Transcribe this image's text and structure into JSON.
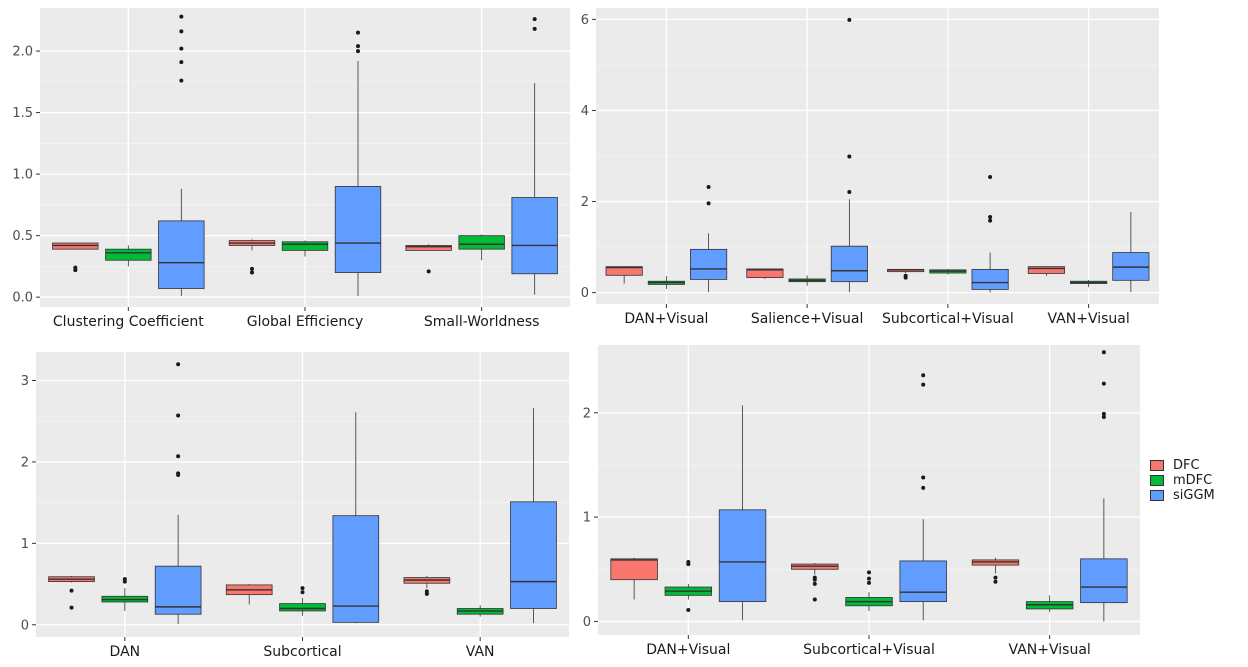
{
  "chart_data": [
    {
      "type": "box",
      "categories": [
        "Clustering Coefficient",
        "Global Efficiency",
        "Small-Worldness"
      ],
      "ylim": [
        -0.08,
        2.35
      ],
      "yticks": [
        0.0,
        0.5,
        1.0,
        1.5,
        2.0
      ],
      "ytick_labels": [
        "0.0",
        "0.5",
        "1.0",
        "1.5",
        "2.0"
      ],
      "series": [
        {
          "name": "DFC",
          "boxes": [
            {
              "lo": 0.39,
              "q1": 0.39,
              "med": 0.42,
              "q3": 0.44,
              "hi": 0.44,
              "out": [
                0.22,
                0.24
              ]
            },
            {
              "lo": 0.38,
              "q1": 0.42,
              "med": 0.44,
              "q3": 0.46,
              "hi": 0.47,
              "out": [
                0.2,
                0.23
              ]
            },
            {
              "lo": 0.38,
              "q1": 0.38,
              "med": 0.41,
              "q3": 0.42,
              "hi": 0.43,
              "out": [
                0.21
              ]
            }
          ]
        },
        {
          "name": "mDFC",
          "boxes": [
            {
              "lo": 0.25,
              "q1": 0.3,
              "med": 0.36,
              "q3": 0.39,
              "hi": 0.42,
              "out": []
            },
            {
              "lo": 0.33,
              "q1": 0.38,
              "med": 0.43,
              "q3": 0.45,
              "hi": 0.46,
              "out": []
            },
            {
              "lo": 0.3,
              "q1": 0.39,
              "med": 0.43,
              "q3": 0.5,
              "hi": 0.51,
              "out": []
            }
          ]
        },
        {
          "name": "siGGM",
          "boxes": [
            {
              "lo": 0.01,
              "q1": 0.07,
              "med": 0.28,
              "q3": 0.62,
              "hi": 0.88,
              "out": [
                1.76,
                1.91,
                2.02,
                2.16,
                2.28
              ]
            },
            {
              "lo": 0.01,
              "q1": 0.2,
              "med": 0.44,
              "q3": 0.9,
              "hi": 1.92,
              "out": [
                2.0,
                2.04,
                2.15
              ]
            },
            {
              "lo": 0.02,
              "q1": 0.19,
              "med": 0.42,
              "q3": 0.81,
              "hi": 1.74,
              "out": [
                2.18,
                2.26
              ]
            }
          ]
        }
      ]
    },
    {
      "type": "box",
      "categories": [
        "DAN+Visual",
        "Salience+Visual",
        "Subcortical+Visual",
        "VAN+Visual"
      ],
      "ylim": [
        -0.25,
        6.25
      ],
      "yticks": [
        0,
        2,
        4,
        6
      ],
      "ytick_labels": [
        "0",
        "2",
        "4",
        "6"
      ],
      "series": [
        {
          "name": "DFC",
          "boxes": [
            {
              "lo": 0.2,
              "q1": 0.38,
              "med": 0.55,
              "q3": 0.57,
              "hi": 0.58,
              "out": []
            },
            {
              "lo": 0.3,
              "q1": 0.33,
              "med": 0.5,
              "q3": 0.52,
              "hi": 0.53,
              "out": []
            },
            {
              "lo": 0.43,
              "q1": 0.46,
              "med": 0.5,
              "q3": 0.51,
              "hi": 0.52,
              "out": [
                0.33,
                0.37
              ]
            },
            {
              "lo": 0.37,
              "q1": 0.42,
              "med": 0.53,
              "q3": 0.57,
              "hi": 0.58,
              "out": []
            }
          ]
        },
        {
          "name": "mDFC",
          "boxes": [
            {
              "lo": 0.08,
              "q1": 0.18,
              "med": 0.22,
              "q3": 0.25,
              "hi": 0.36,
              "out": []
            },
            {
              "lo": 0.15,
              "q1": 0.24,
              "med": 0.27,
              "q3": 0.3,
              "hi": 0.38,
              "out": []
            },
            {
              "lo": 0.4,
              "q1": 0.43,
              "med": 0.47,
              "q3": 0.5,
              "hi": 0.52,
              "out": []
            },
            {
              "lo": 0.12,
              "q1": 0.2,
              "med": 0.22,
              "q3": 0.25,
              "hi": 0.28,
              "out": []
            }
          ]
        },
        {
          "name": "siGGM",
          "boxes": [
            {
              "lo": 0.01,
              "q1": 0.29,
              "med": 0.52,
              "q3": 0.95,
              "hi": 1.3,
              "out": [
                1.96,
                2.32
              ]
            },
            {
              "lo": 0.01,
              "q1": 0.24,
              "med": 0.48,
              "q3": 1.02,
              "hi": 2.05,
              "out": [
                2.21,
                2.99,
                5.99
              ]
            },
            {
              "lo": 0.0,
              "q1": 0.07,
              "med": 0.22,
              "q3": 0.51,
              "hi": 0.88,
              "out": [
                1.58,
                1.66,
                2.54
              ]
            },
            {
              "lo": 0.01,
              "q1": 0.27,
              "med": 0.56,
              "q3": 0.88,
              "hi": 1.77,
              "out": []
            }
          ]
        }
      ]
    },
    {
      "type": "box",
      "categories": [
        "DAN",
        "Subcortical",
        "VAN"
      ],
      "ylim": [
        -0.15,
        3.35
      ],
      "yticks": [
        0,
        1,
        2,
        3
      ],
      "ytick_labels": [
        "0",
        "1",
        "2",
        "3"
      ],
      "series": [
        {
          "name": "DFC",
          "boxes": [
            {
              "lo": 0.52,
              "q1": 0.53,
              "med": 0.56,
              "q3": 0.59,
              "hi": 0.6,
              "out": [
                0.21,
                0.42
              ]
            },
            {
              "lo": 0.25,
              "q1": 0.37,
              "med": 0.43,
              "q3": 0.49,
              "hi": 0.5,
              "out": []
            },
            {
              "lo": 0.45,
              "q1": 0.51,
              "med": 0.55,
              "q3": 0.58,
              "hi": 0.6,
              "out": [
                0.38,
                0.41
              ]
            }
          ]
        },
        {
          "name": "mDFC",
          "boxes": [
            {
              "lo": 0.17,
              "q1": 0.28,
              "med": 0.31,
              "q3": 0.35,
              "hi": 0.45,
              "out": [
                0.53,
                0.56
              ]
            },
            {
              "lo": 0.11,
              "q1": 0.17,
              "med": 0.2,
              "q3": 0.26,
              "hi": 0.33,
              "out": [
                0.4,
                0.45
              ]
            },
            {
              "lo": 0.1,
              "q1": 0.13,
              "med": 0.17,
              "q3": 0.2,
              "hi": 0.24,
              "out": []
            }
          ]
        },
        {
          "name": "siGGM",
          "boxes": [
            {
              "lo": 0.01,
              "q1": 0.13,
              "med": 0.22,
              "q3": 0.72,
              "hi": 1.35,
              "out": [
                1.84,
                1.86,
                2.07,
                2.57,
                3.2
              ]
            },
            {
              "lo": 0.02,
              "q1": 0.03,
              "med": 0.23,
              "q3": 1.34,
              "hi": 2.61,
              "out": []
            },
            {
              "lo": 0.02,
              "q1": 0.2,
              "med": 0.53,
              "q3": 1.51,
              "hi": 2.66,
              "out": []
            }
          ]
        }
      ]
    },
    {
      "type": "box",
      "categories": [
        "DAN+Visual",
        "Subcortical+Visual",
        "VAN+Visual"
      ],
      "ylim": [
        -0.13,
        2.65
      ],
      "yticks": [
        0,
        1,
        2
      ],
      "ytick_labels": [
        "0",
        "1",
        "2"
      ],
      "series": [
        {
          "name": "DFC",
          "boxes": [
            {
              "lo": 0.21,
              "q1": 0.4,
              "med": 0.59,
              "q3": 0.6,
              "hi": 0.61,
              "out": []
            },
            {
              "lo": 0.45,
              "q1": 0.5,
              "med": 0.53,
              "q3": 0.55,
              "hi": 0.56,
              "out": [
                0.21,
                0.36,
                0.4,
                0.42
              ]
            },
            {
              "lo": 0.46,
              "q1": 0.54,
              "med": 0.57,
              "q3": 0.59,
              "hi": 0.61,
              "out": [
                0.38,
                0.42
              ]
            }
          ]
        },
        {
          "name": "mDFC",
          "boxes": [
            {
              "lo": 0.21,
              "q1": 0.25,
              "med": 0.29,
              "q3": 0.33,
              "hi": 0.36,
              "out": [
                0.11,
                0.55,
                0.57
              ]
            },
            {
              "lo": 0.1,
              "q1": 0.15,
              "med": 0.19,
              "q3": 0.23,
              "hi": 0.28,
              "out": [
                0.37,
                0.41,
                0.47
              ]
            },
            {
              "lo": 0.09,
              "q1": 0.12,
              "med": 0.16,
              "q3": 0.19,
              "hi": 0.25,
              "out": []
            }
          ]
        },
        {
          "name": "siGGM",
          "boxes": [
            {
              "lo": 0.01,
              "q1": 0.19,
              "med": 0.57,
              "q3": 1.07,
              "hi": 2.07,
              "out": []
            },
            {
              "lo": 0.01,
              "q1": 0.19,
              "med": 0.28,
              "q3": 0.58,
              "hi": 0.98,
              "out": [
                1.28,
                1.38,
                2.27,
                2.36
              ]
            },
            {
              "lo": 0.0,
              "q1": 0.18,
              "med": 0.33,
              "q3": 0.6,
              "hi": 1.18,
              "out": [
                1.96,
                1.99,
                2.28,
                2.58
              ]
            }
          ]
        }
      ]
    }
  ],
  "legend": {
    "entries": [
      {
        "name": "DFC",
        "color": "#F8766D"
      },
      {
        "name": "mDFC",
        "color": "#00BA38"
      },
      {
        "name": "siGGM",
        "color": "#619CFF"
      }
    ]
  },
  "colors": {
    "panel_bg": "#EBEBEB",
    "grid_major": "#FFFFFF",
    "box_outline": "#333333"
  }
}
